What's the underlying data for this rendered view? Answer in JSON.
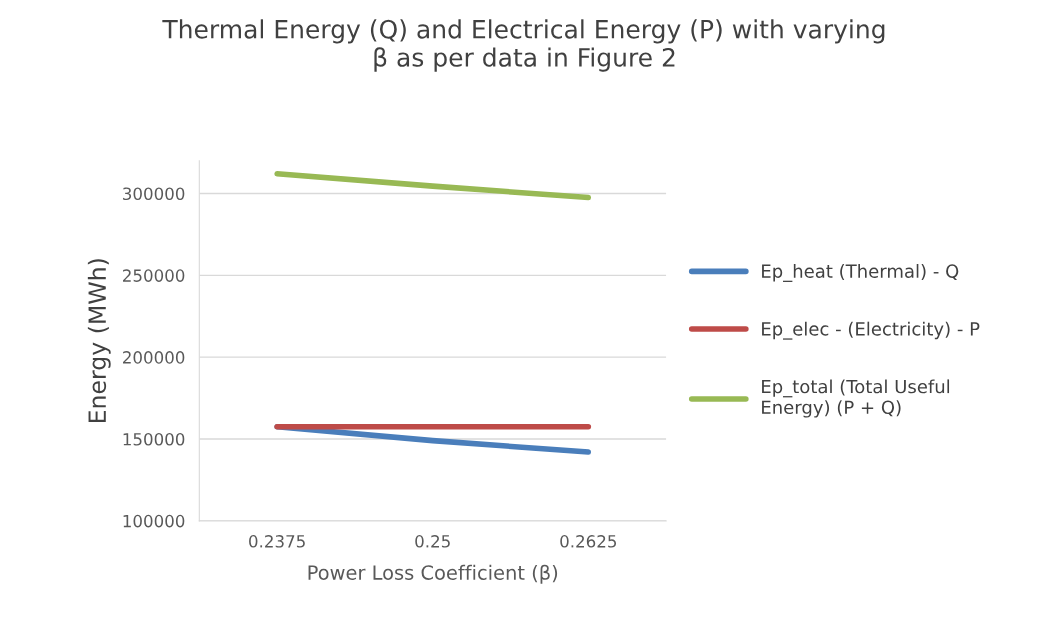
{
  "chart_data": {
    "type": "line",
    "title": "Thermal Energy (Q) and Electrical Energy (P) with varying\nβ as per data in Figure 2",
    "xlabel": "Power Loss Coefficient (β)",
    "ylabel": "Energy (MWh)",
    "categories": [
      "0.2375",
      "0.25",
      "0.2625"
    ],
    "series": [
      {
        "name": "Ep_heat (Thermal) - Q",
        "color": "#4a7ebb",
        "values": [
          157500,
          149000,
          142000
        ]
      },
      {
        "name": "Ep_elec - (Electricity) - P",
        "color": "#be4b48",
        "values": [
          157500,
          157500,
          157500
        ]
      },
      {
        "name": "Ep_total (Total Useful\nEnergy) (P + Q)",
        "color": "#98b954",
        "values": [
          312000,
          304500,
          297500
        ]
      }
    ],
    "ylim": [
      100000,
      320000
    ],
    "yticks": [
      100000,
      150000,
      200000,
      250000,
      300000
    ],
    "grid": "y",
    "legend": "right",
    "marker": "none",
    "line_style": "solid"
  }
}
